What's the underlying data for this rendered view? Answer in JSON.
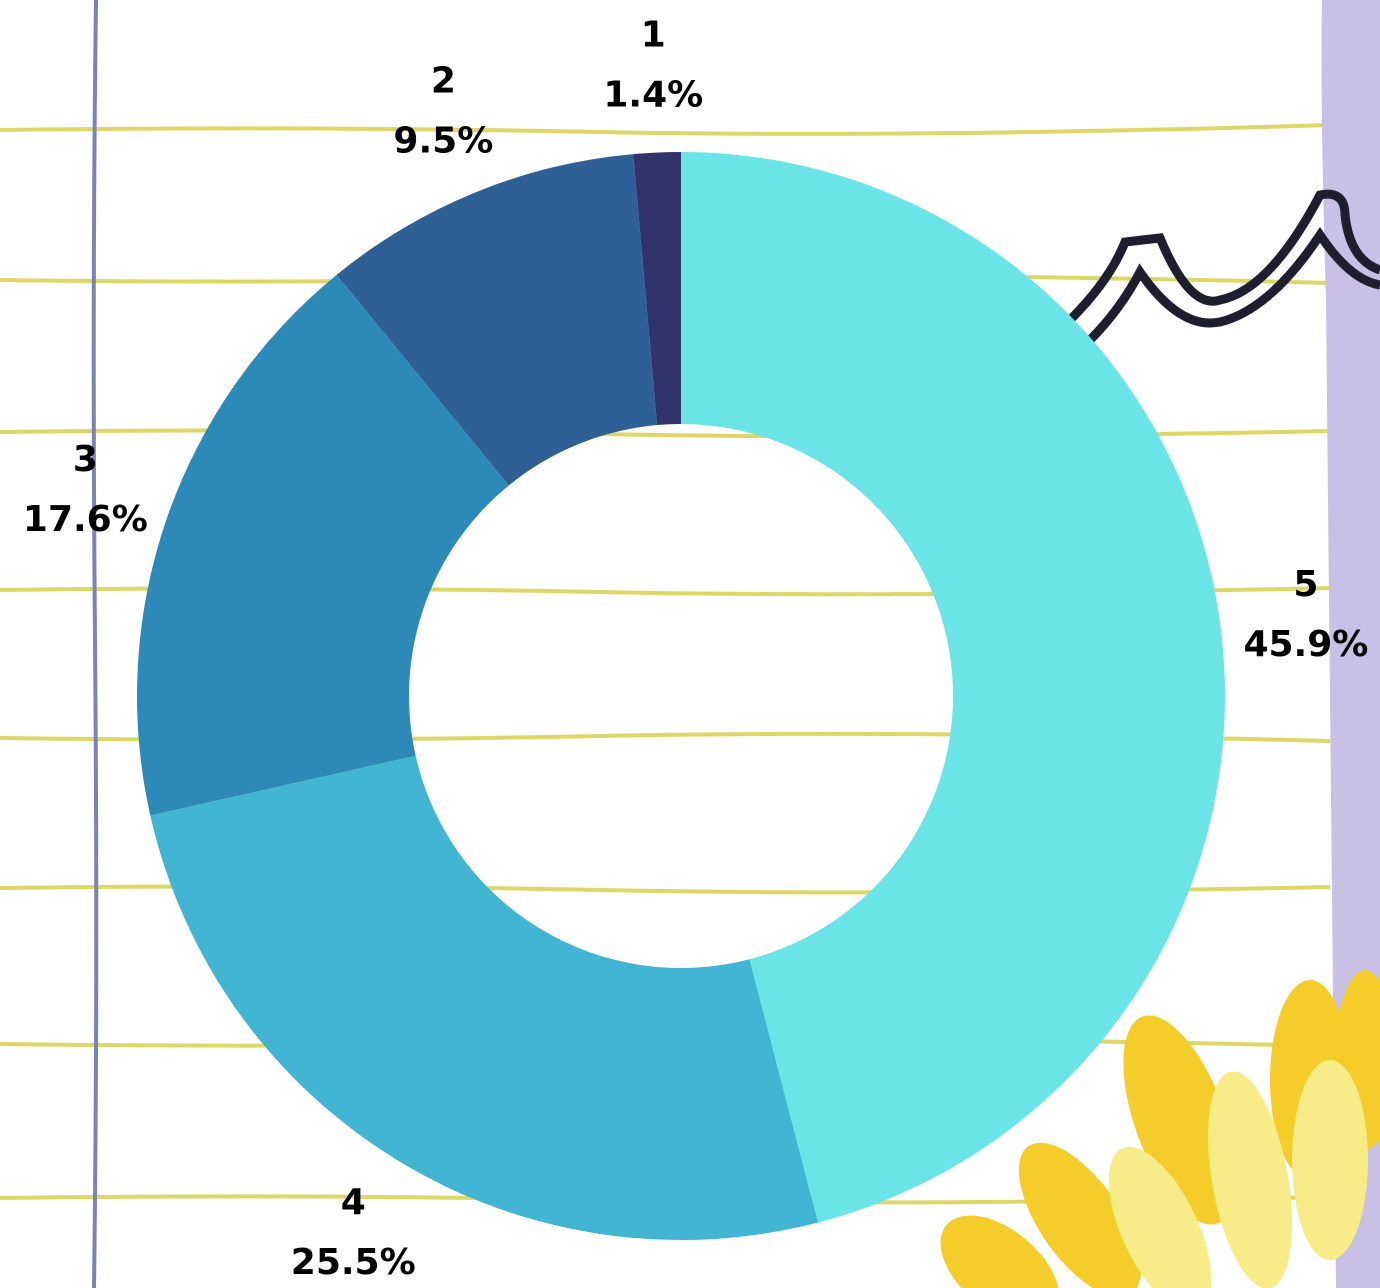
{
  "chart_data": {
    "type": "pie",
    "donut": true,
    "categories": [
      "1",
      "2",
      "3",
      "4",
      "5"
    ],
    "values": [
      1.4,
      9.5,
      17.6,
      25.5,
      45.9
    ],
    "value_labels": [
      "1.4%",
      "9.5%",
      "17.6%",
      "25.5%",
      "45.9%"
    ],
    "colors": [
      "#32336b",
      "#2e5f95",
      "#2d8ab8",
      "#42b5d3",
      "#6ae4e7"
    ]
  }
}
